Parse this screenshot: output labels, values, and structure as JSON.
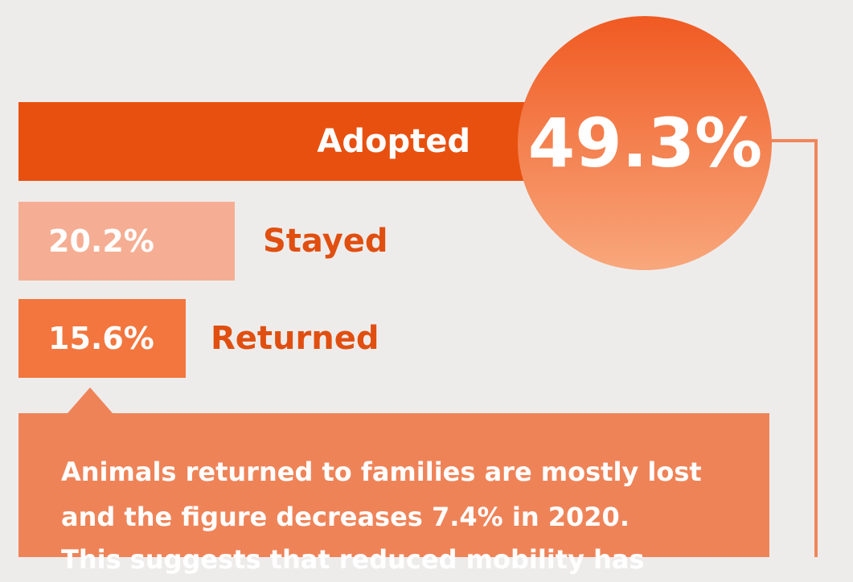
{
  "chart_data": {
    "type": "bar",
    "categories": [
      "Adopted",
      "Stayed",
      "Returned"
    ],
    "values": [
      49.3,
      20.2,
      15.6
    ],
    "value_labels": [
      "49.3%",
      "20.2%",
      "15.6%"
    ],
    "colors": [
      "#e8500f",
      "#f5ae93",
      "#f2763e"
    ],
    "annotation_lines": [
      "Animals returned to families are mostly lost",
      "and the figure decreases 7.4% in 2020.",
      "This suggests that reduced mobility has"
    ]
  }
}
